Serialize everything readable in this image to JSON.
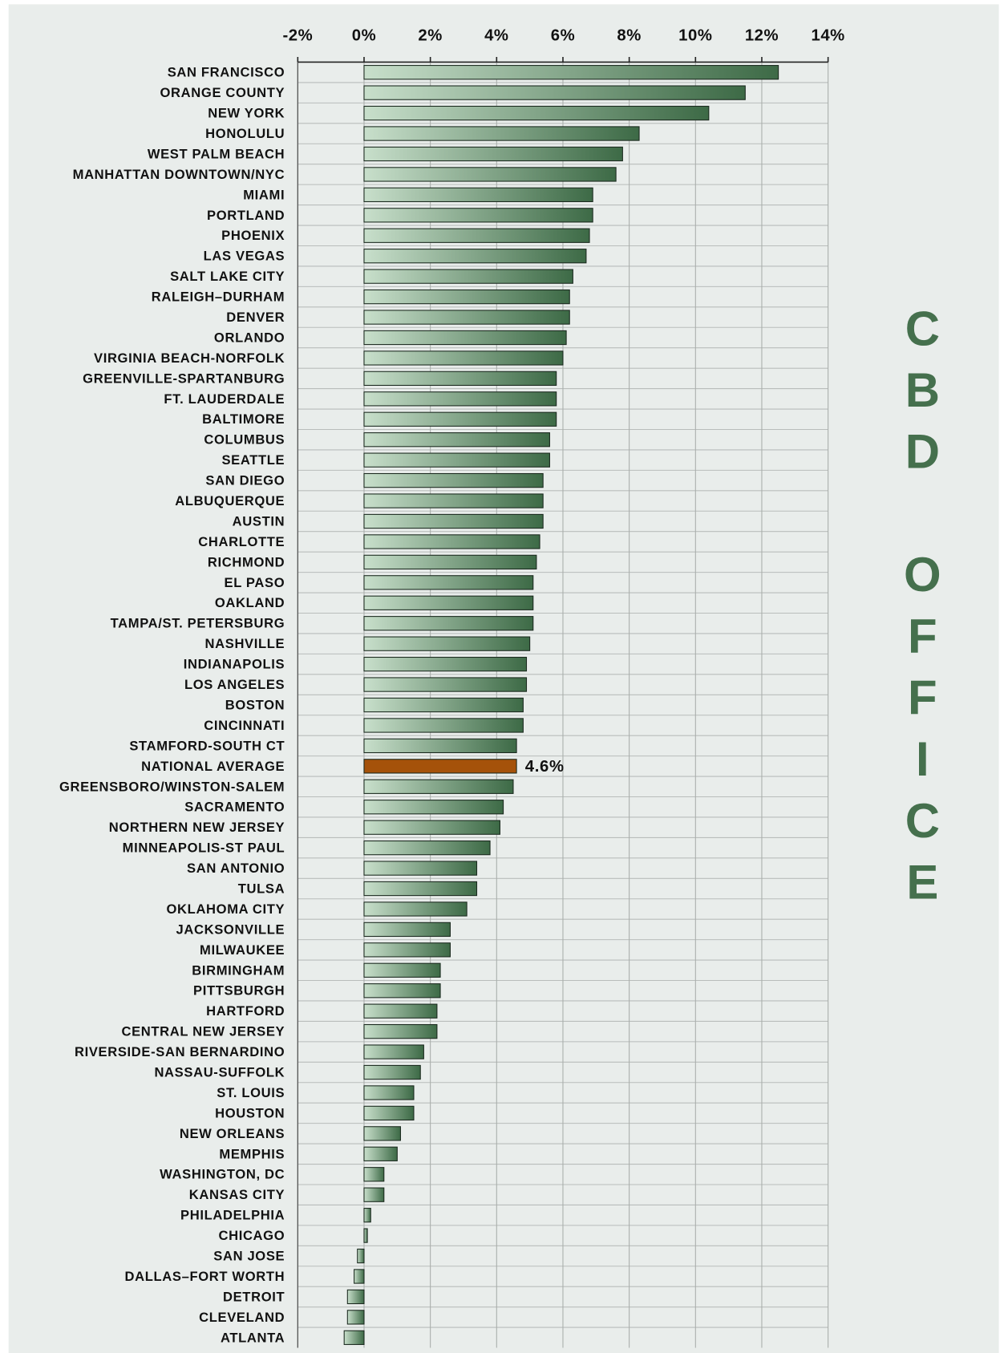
{
  "chart_data": {
    "type": "bar",
    "orientation": "horizontal",
    "categories": [
      "SAN FRANCISCO",
      "ORANGE COUNTY",
      "NEW YORK",
      "HONOLULU",
      "WEST PALM BEACH",
      "MANHATTAN DOWNTOWN/NYC",
      "MIAMI",
      "PORTLAND",
      "PHOENIX",
      "LAS VEGAS",
      "SALT LAKE CITY",
      "RALEIGH–DURHAM",
      "DENVER",
      "ORLANDO",
      "VIRGINIA BEACH-NORFOLK",
      "GREENVILLE-SPARTANBURG",
      "FT. LAUDERDALE",
      "BALTIMORE",
      "COLUMBUS",
      "SEATTLE",
      "SAN DIEGO",
      "ALBUQUERQUE",
      "AUSTIN",
      "CHARLOTTE",
      "RICHMOND",
      "EL PASO",
      "OAKLAND",
      "TAMPA/ST. PETERSBURG",
      "NASHVILLE",
      "INDIANAPOLIS",
      "LOS ANGELES",
      "BOSTON",
      "CINCINNATI",
      "STAMFORD-SOUTH CT",
      "NATIONAL AVERAGE",
      "GREENSBORO/WINSTON-SALEM",
      "SACRAMENTO",
      "NORTHERN NEW JERSEY",
      "MINNEAPOLIS-ST PAUL",
      "SAN ANTONIO",
      "TULSA",
      "OKLAHOMA CITY",
      "JACKSONVILLE",
      "MILWAUKEE",
      "BIRMINGHAM",
      "PITTSBURGH",
      "HARTFORD",
      "CENTRAL NEW JERSEY",
      "RIVERSIDE-SAN BERNARDINO",
      "NASSAU-SUFFOLK",
      "ST. LOUIS",
      "HOUSTON",
      "NEW ORLEANS",
      "MEMPHIS",
      "WASHINGTON, DC",
      "KANSAS CITY",
      "PHILADELPHIA",
      "CHICAGO",
      "SAN JOSE",
      "DALLAS–FORT WORTH",
      "DETROIT",
      "CLEVELAND",
      "ATLANTA"
    ],
    "values": [
      12.5,
      11.5,
      10.4,
      8.3,
      7.8,
      7.6,
      6.9,
      6.9,
      6.8,
      6.7,
      6.3,
      6.2,
      6.2,
      6.1,
      6.0,
      5.8,
      5.8,
      5.8,
      5.6,
      5.6,
      5.4,
      5.4,
      5.4,
      5.3,
      5.2,
      5.1,
      5.1,
      5.1,
      5.0,
      4.9,
      4.9,
      4.8,
      4.8,
      4.6,
      4.6,
      4.5,
      4.2,
      4.1,
      3.8,
      3.4,
      3.4,
      3.1,
      2.6,
      2.6,
      2.3,
      2.3,
      2.2,
      2.2,
      1.8,
      1.7,
      1.5,
      1.5,
      1.1,
      1.0,
      0.6,
      0.6,
      0.2,
      0.1,
      -0.2,
      -0.3,
      -0.5,
      -0.5,
      -0.6
    ],
    "value_labels": [
      null,
      null,
      null,
      null,
      null,
      null,
      null,
      null,
      null,
      null,
      null,
      null,
      null,
      null,
      null,
      null,
      null,
      null,
      null,
      null,
      null,
      null,
      null,
      null,
      null,
      null,
      null,
      null,
      null,
      null,
      null,
      null,
      null,
      null,
      "4.6%",
      null,
      null,
      null,
      null,
      null,
      null,
      null,
      null,
      null,
      null,
      null,
      null,
      null,
      null,
      null,
      null,
      null,
      null,
      null,
      null,
      null,
      null,
      null,
      null,
      null,
      null,
      null,
      null
    ],
    "gradient": [
      "#c8dfcb",
      "#3d6a46"
    ],
    "highlight_category": "NATIONAL AVERAGE",
    "highlight_color": "#a5520a",
    "xlim": [
      -2,
      14
    ],
    "xticks": [
      {
        "value": -2,
        "label": "-2%"
      },
      {
        "value": 0,
        "label": "0%"
      },
      {
        "value": 2,
        "label": "2%"
      },
      {
        "value": 4,
        "label": "4%"
      },
      {
        "value": 6,
        "label": "6%"
      },
      {
        "value": 8,
        "label": "8%"
      },
      {
        "value": 10,
        "label": "10%"
      },
      {
        "value": 12,
        "label": "12%"
      },
      {
        "value": 14,
        "label": "14%"
      }
    ],
    "grid": true,
    "side_label": "CBD OFFICE",
    "side_label_color": "#45704d"
  }
}
